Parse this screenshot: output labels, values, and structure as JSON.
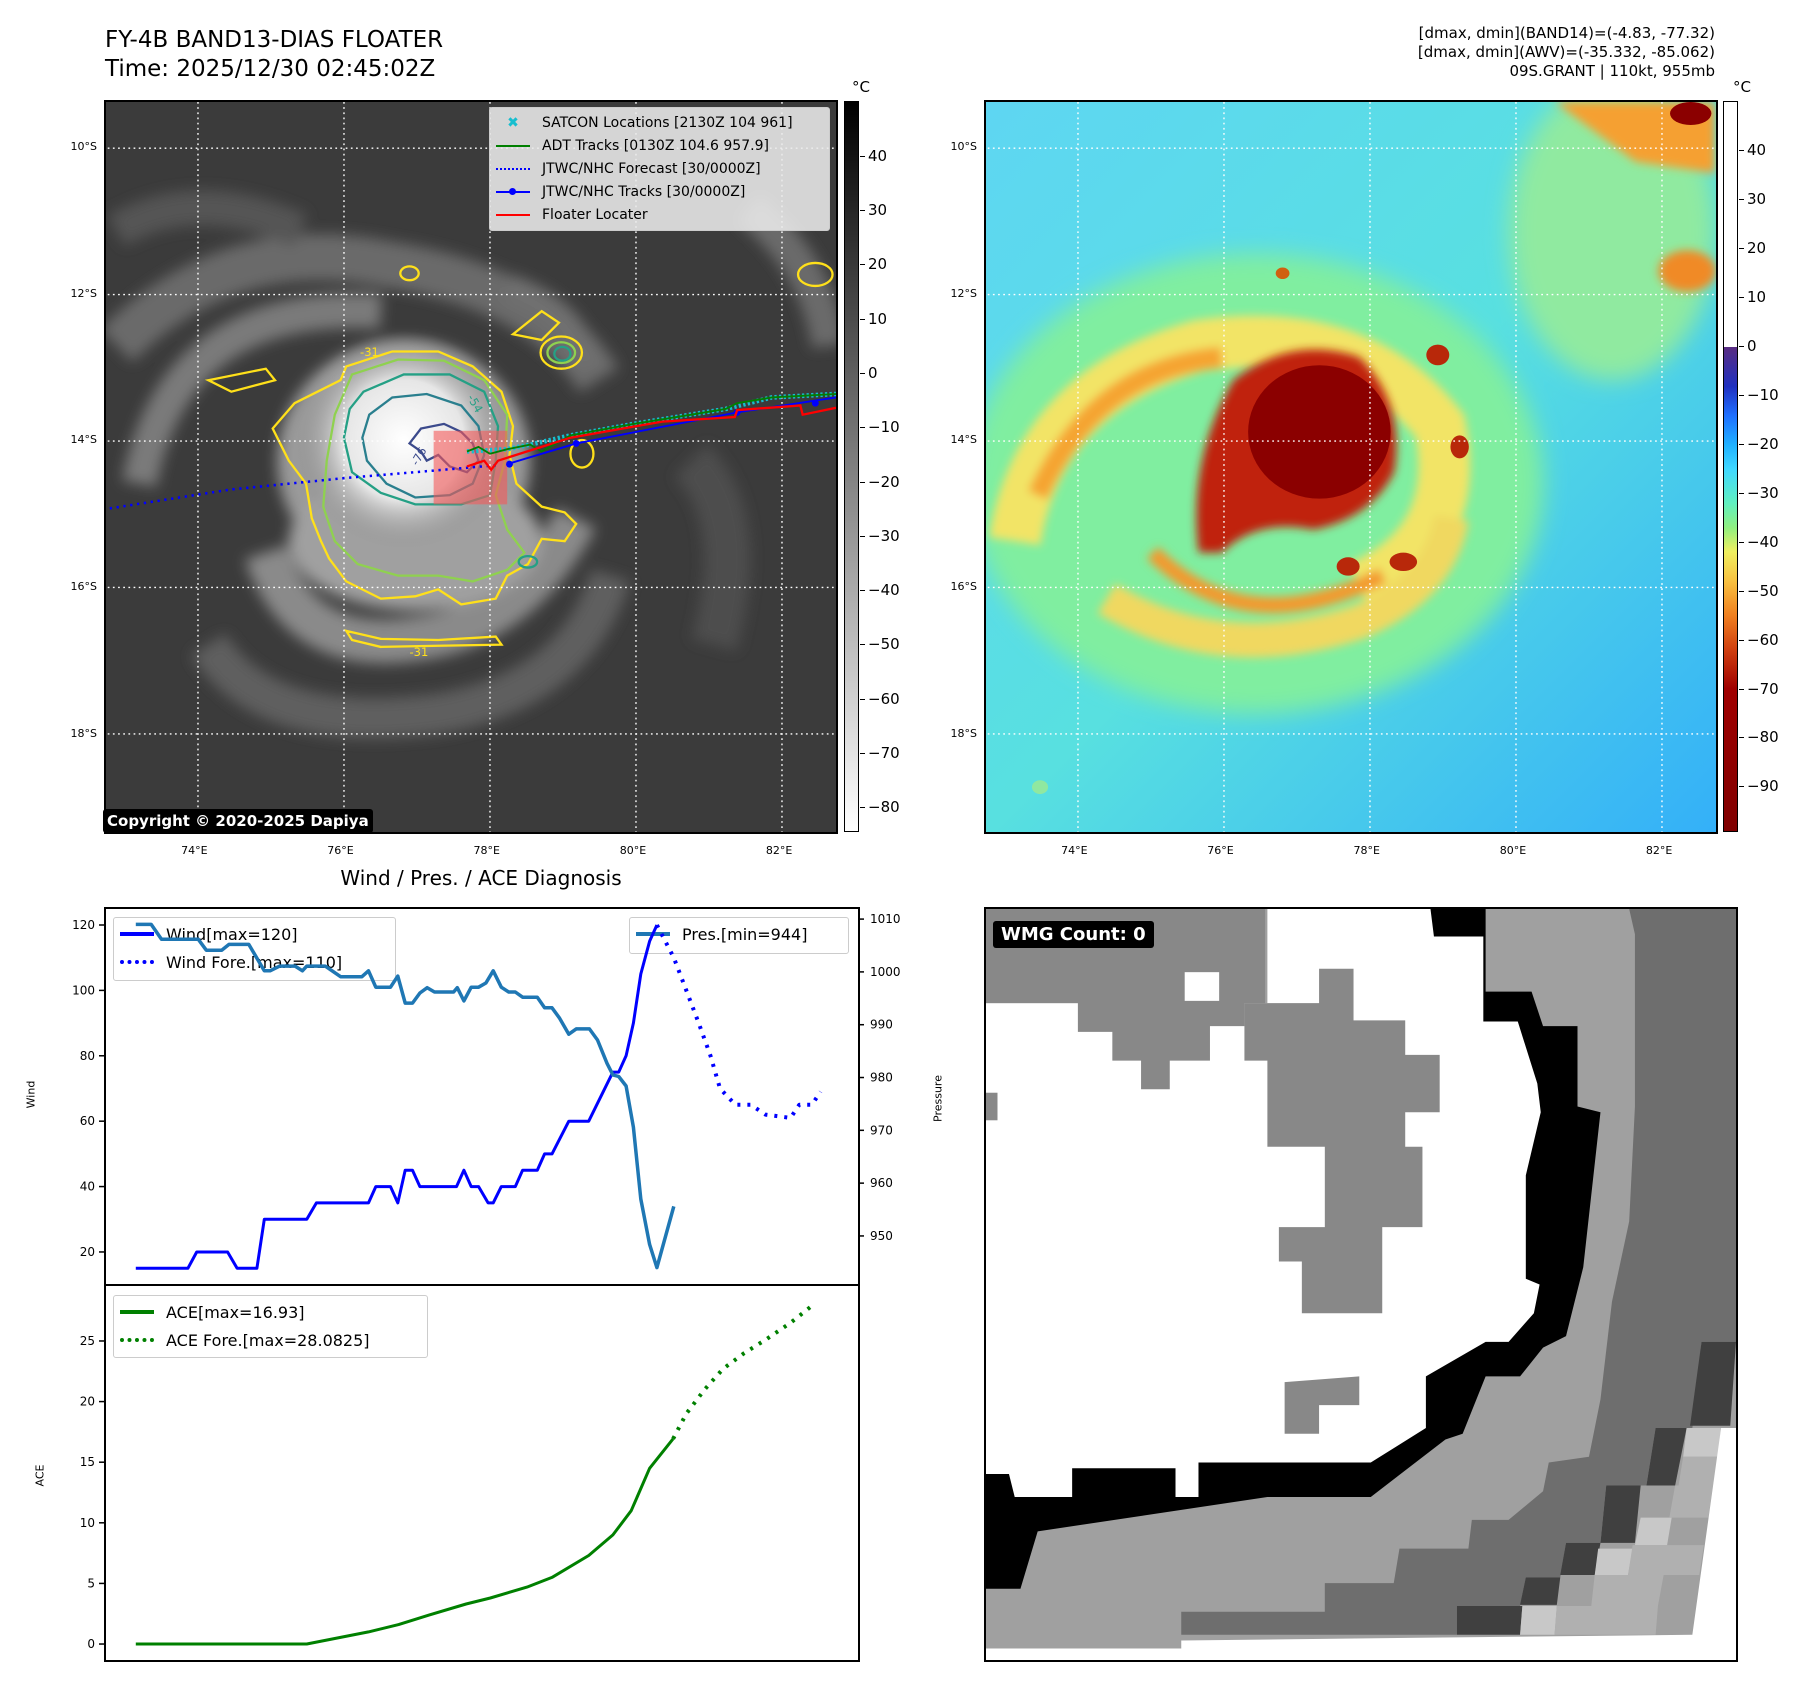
{
  "header": {
    "title": "FY-4B BAND13-DIAS FLOATER",
    "time": "Time: 2025/12/30 02:45:02Z",
    "stats": [
      "[dmax, dmin](BAND14)=(-4.83, -77.32)",
      "[dmax, dmin](AWV)=(-35.332, -85.062)",
      "09S.GRANT | 110kt, 955mb"
    ]
  },
  "geo": {
    "lon_range": [
      72.74,
      82.74
    ],
    "lat_range": [
      -9.37,
      -19.34
    ],
    "lon_ticks": [
      74,
      76,
      78,
      80,
      82
    ],
    "lon_labels": [
      "74°E",
      "76°E",
      "78°E",
      "80°E",
      "82°E"
    ],
    "lat_ticks": [
      -10,
      -12,
      -14,
      -16,
      -18
    ],
    "lat_labels": [
      "10°S",
      "12°S",
      "14°S",
      "16°S",
      "18°S"
    ]
  },
  "ir_map": {
    "legend": [
      {
        "label": "SATCON Locations [2130Z 104 961]",
        "color": "#17becf",
        "style": "x-marker"
      },
      {
        "label": "ADT Tracks [0130Z 104.6 957.9]",
        "color": "#008000",
        "style": "solid"
      },
      {
        "label": "JTWC/NHC Forecast [30/0000Z]",
        "color": "#0000ff",
        "style": "dotted"
      },
      {
        "label": "JTWC/NHC Tracks [30/0000Z]",
        "color": "#0000ff",
        "style": "line-dot"
      },
      {
        "label": "Floater Locater",
        "color": "#ff0000",
        "style": "solid"
      }
    ],
    "contour_labels": [
      "-31",
      "-54",
      "-76"
    ],
    "copyright": "Copyright © 2020-2025 Dapiya",
    "colorbar": {
      "unit": "°C",
      "range": [
        50.3,
        -84.4
      ],
      "ticks": [
        40,
        30,
        20,
        10,
        0,
        -10,
        -20,
        -30,
        -40,
        -50,
        -60,
        -70,
        -80
      ]
    }
  },
  "awv_map": {
    "colorbar": {
      "unit": "°C",
      "range": [
        50.2,
        -99.1
      ],
      "ticks": [
        40,
        30,
        20,
        10,
        0,
        -10,
        -20,
        -30,
        -40,
        -50,
        -60,
        -70,
        -80,
        -90
      ]
    }
  },
  "wmg": {
    "label": "WMG Count: 0"
  },
  "chart_data": [
    {
      "type": "line",
      "title": "Wind / Pres. / ACE Diagnosis",
      "ylabel": "Wind",
      "y2label": "Pressure",
      "xlim": [
        -4.2,
        98.4
      ],
      "ylim": [
        10.2,
        125.2
      ],
      "y2lim": [
        940.9,
        1012.1
      ],
      "yticks": [
        20,
        40,
        60,
        80,
        100,
        120
      ],
      "y2ticks": [
        950,
        960,
        970,
        980,
        990,
        1000,
        1010
      ],
      "series": [
        {
          "name": "Wind[max=120]",
          "axis": "y",
          "color": "#0000ff",
          "style": "solid",
          "x": [
            0,
            7.1,
            8.3,
            12.5,
            13.8,
            16.5,
            17.5,
            23.3,
            24.6,
            31.7,
            32.7,
            34.7,
            35.7,
            36.7,
            37.7,
            38.7,
            43.7,
            44.7,
            45.7,
            46.7,
            48,
            48.7,
            49.8,
            51.7,
            52.7,
            54.7,
            55.7,
            56.7,
            59,
            61.7,
            65,
            65.8,
            66.8,
            67.8,
            68.8,
            70,
            71
          ],
          "y": [
            15,
            15,
            20,
            20,
            15,
            15,
            30,
            30,
            35,
            35,
            40,
            40,
            35,
            45,
            45,
            40,
            40,
            45,
            40,
            40,
            35,
            35,
            40,
            40,
            45,
            45,
            50,
            50,
            60,
            60,
            75,
            75,
            80,
            90,
            105,
            115,
            120
          ]
        },
        {
          "name": "Wind Fore.[max=110]",
          "axis": "y",
          "color": "#0000ff",
          "style": "dotted",
          "x": [
            71,
            73.3,
            75,
            76.7,
            78.3,
            79.6,
            81.7,
            83.8,
            85.8,
            89.2,
            90.4,
            92.1,
            93.3
          ],
          "y": [
            120,
            110,
            100,
            90,
            80,
            70,
            65,
            65,
            62,
            61,
            65,
            65,
            69
          ]
        },
        {
          "name": "Pres.[min=944]",
          "axis": "y2",
          "color": "#1f77b4",
          "style": "solid",
          "x": [
            0,
            2.1,
            3.5,
            8.5,
            9.6,
            11.7,
            12.7,
            15.4,
            17.5,
            18.3,
            19.6,
            21.7,
            22.7,
            23.3,
            25.8,
            27.9,
            30.8,
            31.7,
            32.7,
            34.7,
            35.7,
            36.7,
            37.7,
            38.7,
            39.7,
            40.7,
            43.3,
            43.8,
            44.7,
            45.7,
            46.7,
            47.7,
            48.7,
            49.8,
            50.8,
            51.7,
            52.7,
            54.7,
            55.7,
            56.7,
            57.7,
            59,
            60,
            61.8,
            62.9,
            64.2,
            65,
            65.8,
            66.8,
            67.8,
            68.8,
            70,
            71,
            73.3
          ],
          "y": [
            1009,
            1009,
            1006.2,
            1006.2,
            1004.1,
            1004.1,
            1005.2,
            1005.2,
            1000.2,
            1000.2,
            1001.1,
            1001.1,
            1000.2,
            1001.1,
            1001.1,
            999.1,
            999.1,
            1000.2,
            997.1,
            997.1,
            999.2,
            994.1,
            994.1,
            996.0,
            997.0,
            996.2,
            996.2,
            997.0,
            994.5,
            997.1,
            997.1,
            997.9,
            1000.2,
            997.1,
            996.2,
            996.2,
            995.2,
            995.2,
            993.2,
            993.2,
            991.3,
            988.2,
            989.2,
            989.2,
            987.1,
            982.7,
            980.5,
            980.2,
            978.4,
            970.6,
            957.0,
            948.4,
            944.0,
            955.6
          ]
        }
      ]
    },
    {
      "type": "line",
      "ylabel": "ACE",
      "xlim": [
        -4.2,
        98.4
      ],
      "ylim": [
        -1.4,
        29.7
      ],
      "yticks": [
        0,
        5,
        10,
        15,
        20,
        25
      ],
      "series": [
        {
          "name": "ACE[max=16.93]",
          "axis": "y",
          "color": "#008000",
          "style": "solid",
          "x": [
            0,
            23.3,
            31.7,
            35.8,
            40,
            45,
            48.3,
            53.3,
            56.7,
            61.7,
            65,
            67.5,
            70,
            73.2
          ],
          "y": [
            0,
            0,
            1.0,
            1.6,
            2.4,
            3.3,
            3.8,
            4.7,
            5.5,
            7.3,
            9,
            11,
            14.5,
            16.93
          ]
        },
        {
          "name": "ACE Fore.[max=28.0825]",
          "axis": "y",
          "color": "#008000",
          "style": "dotted",
          "x": [
            73.2,
            75,
            77.5,
            80,
            82.9,
            85.8,
            89.2,
            92.5
          ],
          "y": [
            16.93,
            19,
            21,
            22.7,
            24,
            25.1,
            26.5,
            28.0825
          ]
        }
      ]
    }
  ]
}
